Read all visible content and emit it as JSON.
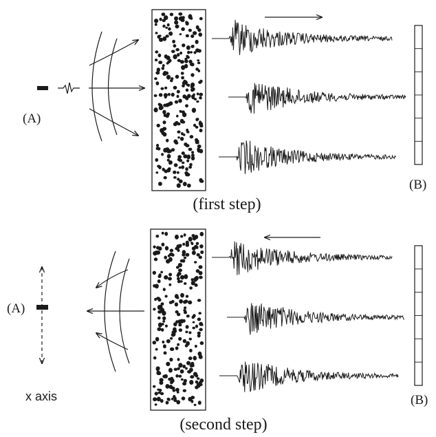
{
  "colors": {
    "ink": "#1a1a1a",
    "background": "#ffffff"
  },
  "panels": [
    {
      "id": "first",
      "caption": "(first step)",
      "source_label": "(A)",
      "array_label": "(B)",
      "flow_arrow_direction": "right",
      "wavefront_direction": "outgoing"
    },
    {
      "id": "second",
      "caption": "(second step)",
      "source_label": "(A)",
      "array_label": "(B)",
      "axis_label": "x axis",
      "flow_arrow_direction": "left",
      "wavefront_direction": "incoming"
    }
  ],
  "icons": {
    "source": "source-bar-icon",
    "pulse": "pulse-icon",
    "medium": "scattering-medium-icon",
    "signal": "signal-trace-icon",
    "array": "transducer-array-icon"
  }
}
